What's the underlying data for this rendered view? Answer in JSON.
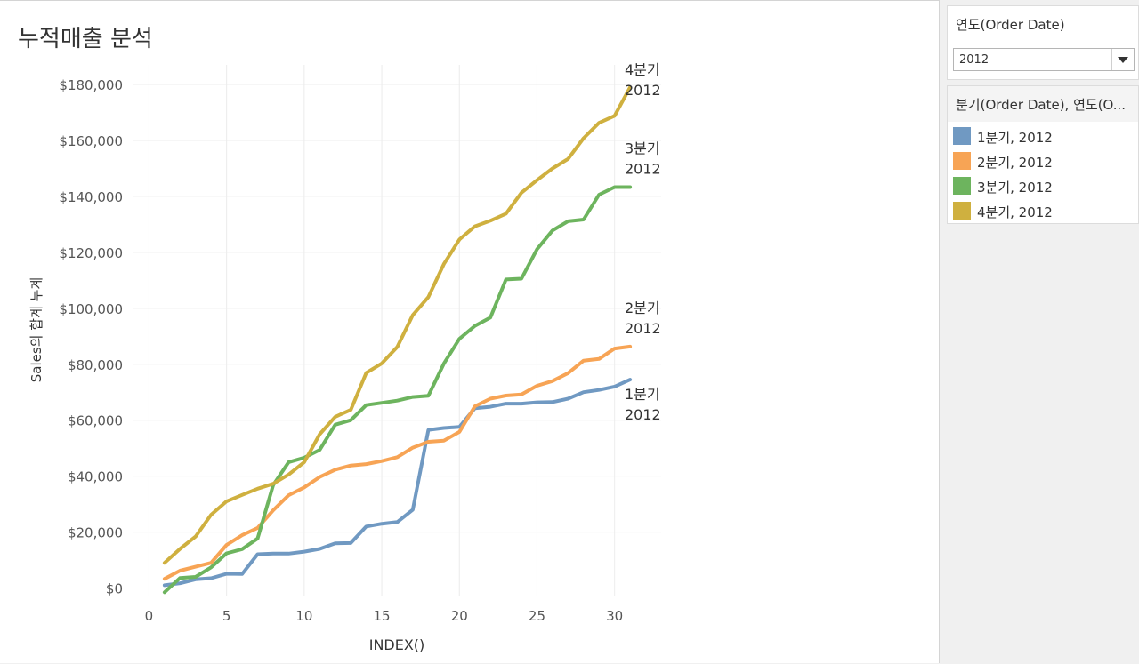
{
  "sheet": {
    "title": "누적매출 분석"
  },
  "filter": {
    "title": "연도(Order Date)",
    "selected": "2012"
  },
  "legend": {
    "title": "분기(Order Date), 연도(O...",
    "items": [
      {
        "label": "1분기, 2012",
        "color": "#7099c2"
      },
      {
        "label": "2분기, 2012",
        "color": "#f7a455"
      },
      {
        "label": "3분기, 2012",
        "color": "#6db45e"
      },
      {
        "label": "4분기, 2012",
        "color": "#cfb03f"
      }
    ]
  },
  "chart_data": {
    "type": "line",
    "title": "",
    "xlabel": "INDEX()",
    "ylabel": "Sales의 합계 누계",
    "xlim": [
      -1,
      33
    ],
    "ylim": [
      -3000,
      187000
    ],
    "x_ticks": [
      0,
      5,
      10,
      15,
      20,
      25,
      30
    ],
    "x_tick_labels": [
      "0",
      "5",
      "10",
      "15",
      "20",
      "25",
      "30"
    ],
    "y_ticks": [
      0,
      20000,
      40000,
      60000,
      80000,
      100000,
      120000,
      140000,
      160000,
      180000
    ],
    "y_tick_labels": [
      "$0",
      "$20,000",
      "$40,000",
      "$60,000",
      "$80,000",
      "$100,000",
      "$120,000",
      "$140,000",
      "$160,000",
      "$180,000"
    ],
    "grid": true,
    "series": [
      {
        "name": "1분기, 2012",
        "end_label": [
          "1분기",
          "2012"
        ],
        "color": "#7099c2",
        "x": [
          1,
          2,
          3,
          4,
          5,
          6,
          7,
          8,
          9,
          10,
          11,
          12,
          13,
          14,
          15,
          16,
          17,
          18,
          19,
          20,
          21,
          22,
          23,
          24,
          25,
          26,
          27,
          28,
          29,
          30,
          31
        ],
        "values": [
          1000,
          1700,
          3100,
          3500,
          5100,
          5000,
          12100,
          12300,
          12300,
          13000,
          14000,
          16000,
          16100,
          22000,
          23000,
          23600,
          28000,
          56500,
          57200,
          57600,
          64300,
          64800,
          65900,
          65900,
          66400,
          66500,
          67700,
          70000,
          70800,
          72000,
          74500
        ]
      },
      {
        "name": "2분기, 2012",
        "end_label": [
          "2분기",
          "2012"
        ],
        "color": "#f7a455",
        "x": [
          1,
          2,
          3,
          4,
          5,
          6,
          7,
          8,
          9,
          10,
          11,
          12,
          13,
          14,
          15,
          16,
          17,
          18,
          19,
          20,
          21,
          22,
          23,
          24,
          25,
          26,
          27,
          28,
          29,
          30,
          31
        ],
        "values": [
          3300,
          6200,
          7600,
          9000,
          15400,
          18900,
          21500,
          27800,
          33200,
          36000,
          39700,
          42300,
          43800,
          44300,
          45400,
          46800,
          50200,
          52300,
          52700,
          55800,
          65000,
          67700,
          68800,
          69200,
          72300,
          74000,
          76800,
          81300,
          81900,
          85600,
          86300
        ]
      },
      {
        "name": "3분기, 2012",
        "end_label": [
          "3분기",
          "2012"
        ],
        "color": "#6db45e",
        "x": [
          1,
          2,
          3,
          4,
          5,
          6,
          7,
          8,
          9,
          10,
          11,
          12,
          13,
          14,
          15,
          16,
          17,
          18,
          19,
          20,
          21,
          22,
          23,
          24,
          25,
          26,
          27,
          28,
          29,
          30,
          31
        ],
        "values": [
          -1500,
          3600,
          4000,
          7400,
          12400,
          13900,
          17700,
          36800,
          45000,
          46600,
          49400,
          58400,
          60000,
          65400,
          66200,
          67000,
          68300,
          68700,
          80200,
          89100,
          93700,
          96700,
          110300,
          110600,
          121100,
          127800,
          131100,
          131700,
          140600,
          143300,
          143300
        ]
      },
      {
        "name": "4분기, 2012",
        "end_label": [
          "4분기",
          "2012"
        ],
        "color": "#cfb03f",
        "x": [
          1,
          2,
          3,
          4,
          5,
          6,
          7,
          8,
          9,
          10,
          11,
          12,
          13,
          14,
          15,
          16,
          17,
          18,
          19,
          20,
          21,
          22,
          23,
          24,
          25,
          26,
          27,
          28,
          29,
          30,
          31
        ],
        "values": [
          9000,
          14000,
          18400,
          26200,
          31000,
          33300,
          35500,
          37300,
          40600,
          45000,
          55000,
          61200,
          63700,
          76900,
          80300,
          86200,
          97600,
          104000,
          115800,
          124600,
          129300,
          131300,
          133800,
          141300,
          145800,
          150000,
          153400,
          160800,
          166300,
          168800,
          179000
        ]
      }
    ]
  }
}
